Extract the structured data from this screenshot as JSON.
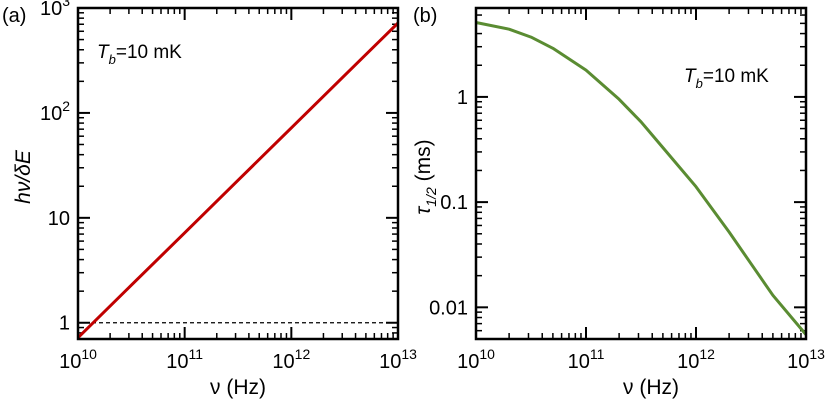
{
  "chart_data": [
    {
      "panel_label": "(a)",
      "type": "line",
      "title": "",
      "xlabel": "ν (Hz)",
      "ylabel": "hν/δE",
      "xscale": "log",
      "yscale": "log",
      "xlim": [
        10000000000.0,
        10000000000000.0
      ],
      "ylim": [
        0.7,
        1000
      ],
      "x_ticks": [
        10000000000.0,
        100000000000.0,
        1000000000000.0,
        10000000000000.0
      ],
      "x_tick_labels": [
        {
          "base": "10",
          "exp": "10"
        },
        {
          "base": "10",
          "exp": "11"
        },
        {
          "base": "10",
          "exp": "12"
        },
        {
          "base": "10",
          "exp": "13"
        }
      ],
      "y_ticks": [
        1,
        10,
        100,
        1000
      ],
      "y_tick_labels": [
        {
          "base": "1",
          "exp": ""
        },
        {
          "base": "10",
          "exp": ""
        },
        {
          "base": "10",
          "exp": "2"
        },
        {
          "base": "10",
          "exp": "3"
        }
      ],
      "annotation": {
        "var": "T",
        "sub": "b",
        "rest": "=10 mK",
        "position": "top-left"
      },
      "reference_line": {
        "y": 1,
        "style": "dashed",
        "color": "#000000"
      },
      "series": [
        {
          "name": "hν/δE",
          "color": "#c00000",
          "x": [
            10000000000.0,
            31600000000.0,
            100000000000.0,
            316000000000.0,
            1000000000000.0,
            3160000000000.0,
            10000000000000.0
          ],
          "y": [
            0.72,
            2.28,
            7.2,
            22.8,
            72,
            228,
            720
          ]
        }
      ]
    },
    {
      "panel_label": "(b)",
      "type": "line",
      "title": "",
      "xlabel": "ν (Hz)",
      "ylabel": "τ1/2 (ms)",
      "xscale": "log",
      "yscale": "log",
      "xlim": [
        10000000000.0,
        10000000000000.0
      ],
      "ylim": [
        0.005,
        7
      ],
      "x_ticks": [
        10000000000.0,
        100000000000.0,
        1000000000000.0,
        10000000000000.0
      ],
      "x_tick_labels": [
        {
          "base": "10",
          "exp": "10"
        },
        {
          "base": "10",
          "exp": "11"
        },
        {
          "base": "10",
          "exp": "12"
        },
        {
          "base": "10",
          "exp": "13"
        }
      ],
      "y_ticks": [
        0.01,
        0.1,
        1
      ],
      "y_tick_labels": [
        "0.01",
        "0.1",
        "1"
      ],
      "annotation": {
        "var": "T",
        "sub": "b",
        "rest": "=10 mK",
        "position": "top-right"
      },
      "series": [
        {
          "name": "τ1/2",
          "color": "#5a8c32",
          "x": [
            10000000000.0,
            20000000000.0,
            31600000000.0,
            50000000000.0,
            100000000000.0,
            200000000000.0,
            316000000000.0,
            500000000000.0,
            1000000000000.0,
            2000000000000.0,
            3160000000000.0,
            5000000000000.0,
            10000000000000.0
          ],
          "y": [
            5.1,
            4.4,
            3.7,
            2.9,
            1.8,
            0.95,
            0.58,
            0.33,
            0.14,
            0.052,
            0.026,
            0.013,
            0.0055
          ]
        }
      ]
    }
  ]
}
